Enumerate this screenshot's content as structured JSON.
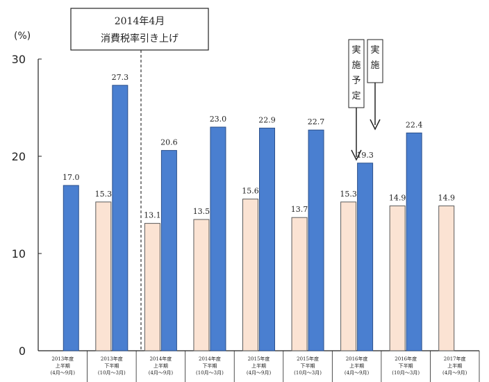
{
  "chart_data": {
    "type": "bar",
    "unit": "(%)",
    "ylim": [
      0,
      30
    ],
    "yticks": [
      "0",
      "10",
      "20",
      "30"
    ],
    "categories": [
      [
        "2013年度",
        "上半期",
        "(4月～9月)"
      ],
      [
        "2013年度",
        "下半期",
        "(10月～3月)"
      ],
      [
        "2014年度",
        "上半期",
        "(4月～9月)"
      ],
      [
        "2014年度",
        "下半期",
        "(10月～3月)"
      ],
      [
        "2015年度",
        "上半期",
        "(4月～9月)"
      ],
      [
        "2015年度",
        "下半期",
        "(10月～3月)"
      ],
      [
        "2016年度",
        "上半期",
        "(4月～9月)"
      ],
      [
        "2016年度",
        "下半期",
        "(10月～3月)"
      ],
      [
        "2017年度",
        "上半期",
        "(4月～9月)"
      ]
    ],
    "series": [
      {
        "color": "#fbe3d3",
        "values": [
          null,
          15.3,
          13.1,
          13.5,
          15.6,
          13.7,
          15.3,
          14.9,
          14.9
        ],
        "labels": [
          "",
          "15.3",
          "13.1",
          "13.5",
          "15.6",
          "13.7",
          "15.3",
          "14.9",
          "14.9"
        ]
      },
      {
        "color": "#4a7fd0",
        "values": [
          17.0,
          27.3,
          20.6,
          23.0,
          22.9,
          22.7,
          19.3,
          22.4,
          null
        ],
        "labels": [
          "17.0",
          "27.3",
          "20.6",
          "23.0",
          "22.9",
          "22.7",
          "19.3",
          "22.4",
          ""
        ]
      }
    ],
    "annotations": {
      "tax_box_line1": "2014年4月",
      "tax_box_line2": "消費税率引き上げ",
      "planned_label": "実施予定",
      "implemented_label": "実施"
    },
    "grid": false
  }
}
